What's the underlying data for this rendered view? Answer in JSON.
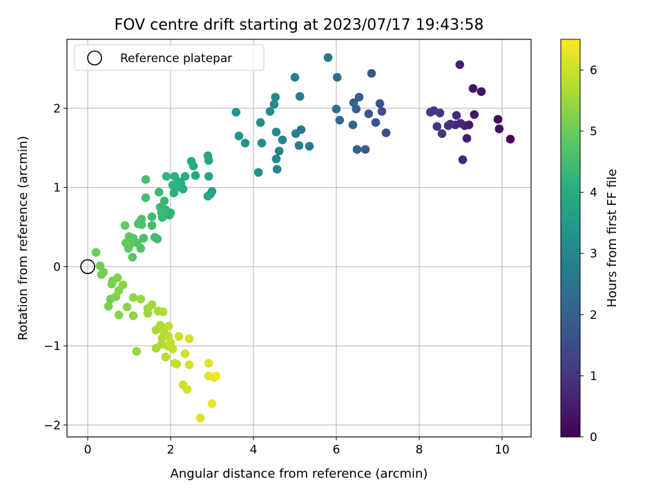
{
  "chart_data": {
    "type": "scatter",
    "title": "FOV centre drift starting at 2023/07/17 19:43:58",
    "xlabel": "Angular distance from reference (arcmin)",
    "ylabel": "Rotation from reference (arcmin)",
    "xlim": [
      -0.5,
      10.7
    ],
    "ylim": [
      -2.15,
      2.87
    ],
    "xticks": [
      0,
      2,
      4,
      6,
      8,
      10
    ],
    "yticks": [
      -2,
      -1,
      0,
      1,
      2
    ],
    "grid": true,
    "legend": {
      "position": "top-left",
      "entries": [
        "Reference platepar"
      ]
    },
    "reference_point": {
      "x": 0,
      "y": 0
    },
    "colorbar": {
      "label": "Hours from first FF file",
      "colormap": "viridis",
      "range": [
        0,
        6.5
      ],
      "ticks": [
        0,
        1,
        2,
        3,
        4,
        5,
        6
      ]
    },
    "points": [
      [
        10.2,
        1.61,
        0.0
      ],
      [
        9.9,
        1.86,
        0.1
      ],
      [
        9.93,
        1.74,
        0.2
      ],
      [
        9.5,
        2.21,
        0.3
      ],
      [
        9.3,
        2.25,
        0.35
      ],
      [
        9.33,
        1.92,
        0.4
      ],
      [
        9.2,
        1.79,
        0.45
      ],
      [
        9.15,
        1.62,
        0.5
      ],
      [
        9.1,
        1.78,
        0.55
      ],
      [
        8.98,
        2.55,
        0.6
      ],
      [
        9.05,
        1.35,
        0.65
      ],
      [
        9.0,
        1.81,
        0.7
      ],
      [
        8.9,
        1.91,
        0.75
      ],
      [
        8.87,
        1.79,
        0.8
      ],
      [
        8.75,
        1.8,
        0.85
      ],
      [
        8.7,
        1.78,
        0.9
      ],
      [
        8.55,
        1.68,
        0.95
      ],
      [
        8.5,
        1.94,
        1.0
      ],
      [
        8.43,
        1.77,
        1.05
      ],
      [
        8.35,
        1.97,
        1.1
      ],
      [
        8.27,
        1.95,
        1.15
      ],
      [
        7.2,
        1.69,
        1.5
      ],
      [
        7.1,
        1.96,
        1.55
      ],
      [
        7.05,
        2.06,
        1.6
      ],
      [
        6.95,
        1.82,
        1.7
      ],
      [
        6.85,
        2.44,
        1.75
      ],
      [
        6.78,
        1.93,
        1.8
      ],
      [
        6.7,
        1.48,
        1.85
      ],
      [
        6.55,
        2.14,
        1.9
      ],
      [
        6.5,
        1.48,
        1.95
      ],
      [
        6.48,
        1.99,
        2.0
      ],
      [
        6.42,
        2.07,
        2.05
      ],
      [
        6.4,
        1.79,
        2.1
      ],
      [
        6.08,
        1.85,
        2.2
      ],
      [
        6.02,
        2.39,
        2.3
      ],
      [
        6.0,
        1.99,
        2.35
      ],
      [
        5.8,
        2.64,
        2.5
      ],
      [
        5.35,
        1.52,
        2.6
      ],
      [
        5.15,
        1.73,
        2.65
      ],
      [
        5.12,
        2.15,
        2.7
      ],
      [
        5.1,
        1.53,
        2.75
      ],
      [
        5.02,
        1.68,
        2.8
      ],
      [
        5.0,
        2.39,
        2.82
      ],
      [
        4.7,
        1.6,
        2.85
      ],
      [
        4.62,
        1.46,
        2.9
      ],
      [
        4.57,
        1.23,
        2.95
      ],
      [
        4.55,
        1.36,
        3.0
      ],
      [
        4.55,
        1.7,
        3.02
      ],
      [
        4.53,
        2.14,
        3.05
      ],
      [
        4.5,
        2.05,
        3.08
      ],
      [
        4.4,
        1.96,
        3.1
      ],
      [
        4.2,
        1.56,
        3.15
      ],
      [
        4.17,
        1.82,
        3.2
      ],
      [
        4.12,
        1.19,
        3.25
      ],
      [
        3.8,
        1.56,
        3.3
      ],
      [
        3.65,
        1.65,
        3.35
      ],
      [
        3.58,
        1.95,
        3.4
      ],
      [
        3.0,
        0.95,
        3.7
      ],
      [
        2.95,
        0.91,
        3.75
      ],
      [
        2.92,
        1.34,
        3.78
      ],
      [
        2.92,
        1.14,
        3.8
      ],
      [
        2.9,
        1.4,
        3.82
      ],
      [
        2.9,
        0.89,
        3.85
      ],
      [
        2.6,
        1.15,
        3.9
      ],
      [
        2.55,
        1.27,
        3.92
      ],
      [
        2.5,
        1.33,
        3.95
      ],
      [
        2.35,
        1.14,
        4.0
      ],
      [
        2.3,
        0.98,
        4.02
      ],
      [
        2.25,
        1.05,
        4.05
      ],
      [
        2.2,
        1.07,
        4.07
      ],
      [
        2.15,
        1.0,
        4.1
      ],
      [
        2.1,
        1.14,
        4.12
      ],
      [
        2.08,
        0.93,
        4.15
      ],
      [
        2.05,
        1.03,
        4.18
      ],
      [
        2.0,
        0.68,
        4.2
      ],
      [
        1.97,
        0.65,
        4.22
      ],
      [
        1.9,
        1.14,
        4.25
      ],
      [
        1.88,
        0.72,
        4.27
      ],
      [
        1.85,
        0.83,
        4.3
      ],
      [
        1.8,
        0.62,
        4.32
      ],
      [
        1.78,
        0.68,
        4.35
      ],
      [
        1.75,
        0.75,
        4.37
      ],
      [
        1.72,
        0.94,
        4.4
      ],
      [
        1.68,
        0.35,
        4.42
      ],
      [
        1.62,
        0.37,
        4.45
      ],
      [
        1.55,
        0.63,
        4.47
      ],
      [
        1.55,
        0.52,
        4.5
      ],
      [
        1.4,
        0.87,
        4.52
      ],
      [
        1.4,
        1.1,
        4.55
      ],
      [
        1.35,
        0.36,
        4.57
      ],
      [
        1.3,
        0.53,
        4.6
      ],
      [
        1.3,
        0.6,
        4.62
      ],
      [
        1.28,
        0.23,
        4.65
      ],
      [
        1.25,
        0.56,
        4.67
      ],
      [
        1.22,
        0.54,
        4.7
      ],
      [
        1.2,
        0.3,
        4.72
      ],
      [
        1.1,
        0.36,
        4.75
      ],
      [
        1.08,
        0.12,
        4.77
      ],
      [
        1.05,
        0.31,
        4.8
      ],
      [
        1.02,
        0.28,
        4.82
      ],
      [
        1.0,
        0.38,
        4.85
      ],
      [
        0.98,
        0.23,
        4.87
      ],
      [
        0.92,
        0.3,
        4.9
      ],
      [
        0.9,
        0.52,
        4.92
      ],
      [
        0.2,
        0.18,
        5.0
      ],
      [
        0.3,
        0.01,
        5.05
      ],
      [
        0.33,
        -0.1,
        5.08
      ],
      [
        0.38,
        -0.07,
        5.1
      ],
      [
        0.5,
        -0.5,
        5.12
      ],
      [
        0.55,
        -0.41,
        5.15
      ],
      [
        0.58,
        -0.22,
        5.17
      ],
      [
        0.6,
        -0.18,
        5.2
      ],
      [
        0.68,
        -0.38,
        5.22
      ],
      [
        0.72,
        -0.14,
        5.25
      ],
      [
        0.75,
        -0.3,
        5.27
      ],
      [
        0.75,
        -0.61,
        5.3
      ],
      [
        0.85,
        -0.23,
        5.32
      ],
      [
        0.95,
        -0.51,
        5.35
      ],
      [
        1.1,
        -0.62,
        5.37
      ],
      [
        1.1,
        -0.39,
        5.4
      ],
      [
        1.18,
        -1.07,
        5.42
      ],
      [
        1.28,
        -0.41,
        5.45
      ],
      [
        1.45,
        -0.59,
        5.5
      ],
      [
        1.45,
        -0.53,
        5.52
      ],
      [
        1.55,
        -0.48,
        5.55
      ],
      [
        1.65,
        -1.03,
        5.57
      ],
      [
        1.65,
        -0.8,
        5.6
      ],
      [
        1.7,
        -0.56,
        5.62
      ],
      [
        1.75,
        -0.74,
        5.65
      ],
      [
        1.78,
        -0.98,
        5.67
      ],
      [
        1.8,
        -0.9,
        5.7
      ],
      [
        1.82,
        -0.57,
        5.72
      ],
      [
        1.85,
        -0.83,
        5.75
      ],
      [
        1.88,
        -1.14,
        5.77
      ],
      [
        1.92,
        -1.0,
        5.8
      ],
      [
        1.95,
        -0.88,
        5.82
      ],
      [
        1.95,
        -0.75,
        5.85
      ],
      [
        2.0,
        -0.96,
        5.87
      ],
      [
        2.05,
        -1.04,
        5.9
      ],
      [
        2.1,
        -1.22,
        5.92
      ],
      [
        2.15,
        -1.23,
        5.95
      ],
      [
        2.2,
        -0.88,
        5.97
      ],
      [
        2.3,
        -1.49,
        6.0
      ],
      [
        2.35,
        -1.1,
        6.02
      ],
      [
        2.4,
        -1.55,
        6.05
      ],
      [
        2.45,
        -1.24,
        6.07
      ],
      [
        2.45,
        -0.91,
        6.1
      ],
      [
        2.72,
        -1.91,
        6.15
      ],
      [
        2.92,
        -1.22,
        6.2
      ],
      [
        2.92,
        -1.38,
        6.25
      ],
      [
        3.0,
        -1.73,
        6.3
      ],
      [
        3.05,
        -1.4,
        6.35
      ],
      [
        3.1,
        -1.38,
        6.4
      ]
    ]
  }
}
